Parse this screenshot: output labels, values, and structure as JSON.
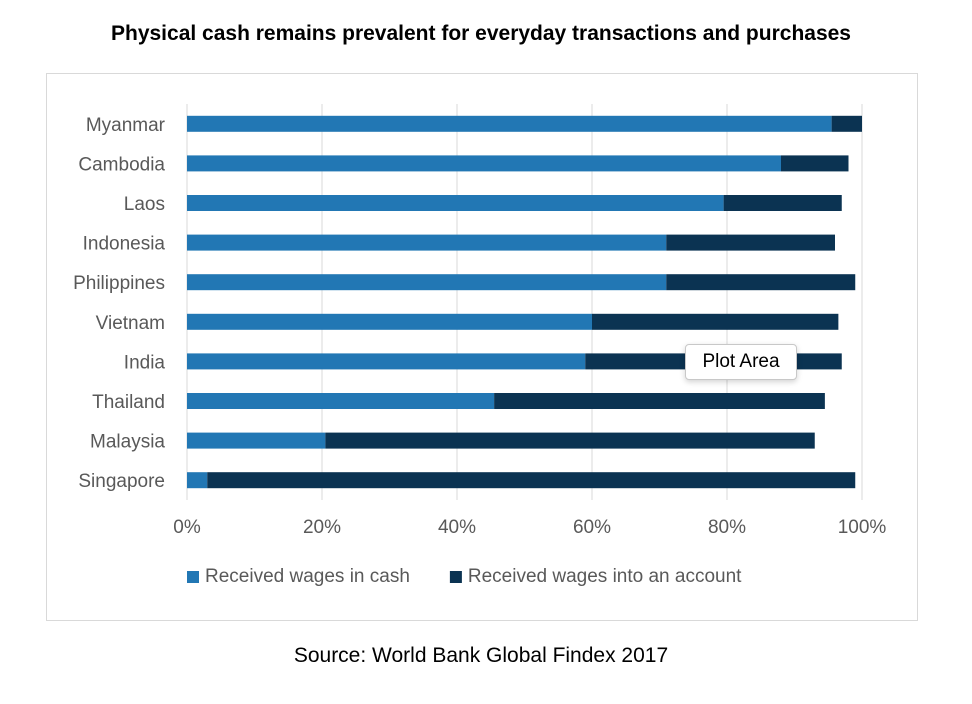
{
  "title": "Physical cash remains prevalent for everyday transactions and purchases",
  "source": "Source: World Bank Global Findex 2017",
  "tooltip": "Plot Area",
  "colors": {
    "cash": "#2277b4",
    "account": "#0b3352",
    "grid": "#d9d9d9",
    "text": "#595959"
  },
  "chart_data": {
    "type": "bar",
    "orientation": "horizontal",
    "stacked": true,
    "categories": [
      "Myanmar",
      "Cambodia",
      "Laos",
      "Indonesia",
      "Philippines",
      "Vietnam",
      "India",
      "Thailand",
      "Malaysia",
      "Singapore"
    ],
    "series": [
      {
        "name": "Received wages in cash",
        "values": [
          95.5,
          88,
          79.5,
          71,
          71,
          60,
          59,
          45.5,
          20.5,
          3
        ]
      },
      {
        "name": "Received wages into an account",
        "values": [
          4.5,
          10,
          17.5,
          25,
          28,
          36.5,
          38,
          49,
          72.5,
          96
        ]
      }
    ],
    "x_ticks": [
      "0%",
      "20%",
      "40%",
      "60%",
      "80%",
      "100%"
    ],
    "xlim": [
      0,
      100
    ],
    "grid": true,
    "legend": "bottom"
  }
}
